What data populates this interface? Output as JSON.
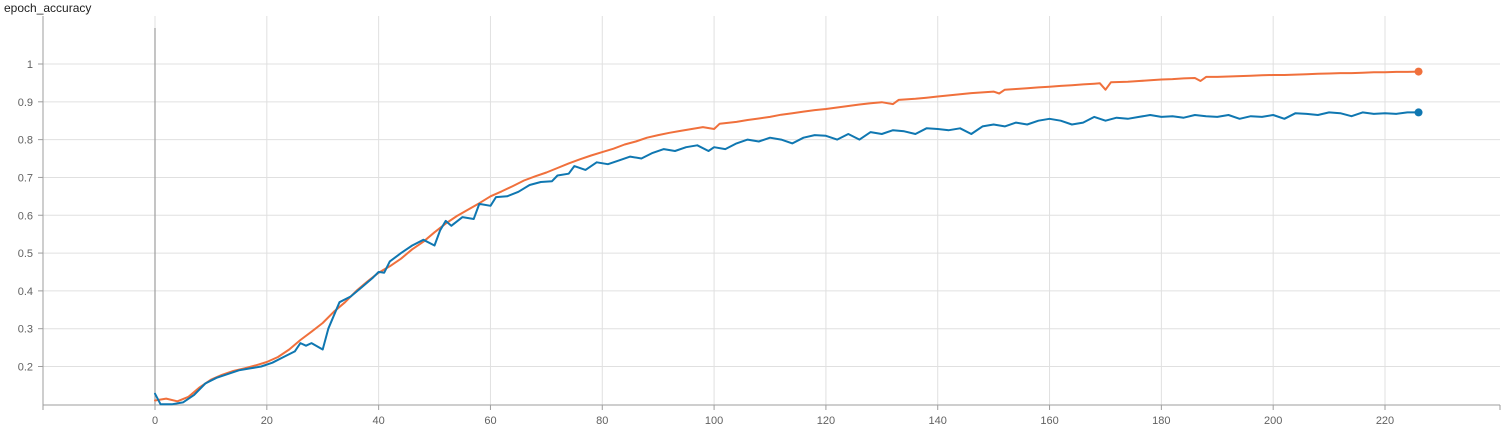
{
  "chart_title": "epoch_accuracy",
  "chart_data": {
    "type": "line",
    "title": "epoch_accuracy",
    "xlabel": "",
    "ylabel": "",
    "xlim": [
      -20,
      240
    ],
    "ylim": [
      0.1,
      1.08
    ],
    "x_ticks": [
      "0",
      "20",
      "40",
      "60",
      "80",
      "100",
      "120",
      "140",
      "160",
      "180",
      "200",
      "220"
    ],
    "y_ticks": [
      "0.2",
      "0.3",
      "0.4",
      "0.5",
      "0.6",
      "0.7",
      "0.8",
      "0.9",
      "1"
    ],
    "grid": true,
    "series": [
      {
        "color": "#f0703c",
        "points": [
          [
            0,
            0.11
          ],
          [
            2,
            0.115
          ],
          [
            4,
            0.108
          ],
          [
            6,
            0.12
          ],
          [
            8,
            0.145
          ],
          [
            10,
            0.165
          ],
          [
            12,
            0.178
          ],
          [
            14,
            0.188
          ],
          [
            16,
            0.195
          ],
          [
            18,
            0.203
          ],
          [
            20,
            0.212
          ],
          [
            22,
            0.225
          ],
          [
            24,
            0.245
          ],
          [
            26,
            0.27
          ],
          [
            28,
            0.292
          ],
          [
            30,
            0.315
          ],
          [
            32,
            0.345
          ],
          [
            34,
            0.37
          ],
          [
            36,
            0.4
          ],
          [
            38,
            0.425
          ],
          [
            40,
            0.448
          ],
          [
            42,
            0.465
          ],
          [
            44,
            0.485
          ],
          [
            46,
            0.51
          ],
          [
            48,
            0.53
          ],
          [
            50,
            0.555
          ],
          [
            52,
            0.578
          ],
          [
            54,
            0.598
          ],
          [
            56,
            0.615
          ],
          [
            58,
            0.632
          ],
          [
            60,
            0.65
          ],
          [
            62,
            0.663
          ],
          [
            64,
            0.677
          ],
          [
            66,
            0.692
          ],
          [
            68,
            0.703
          ],
          [
            70,
            0.713
          ],
          [
            72,
            0.725
          ],
          [
            74,
            0.737
          ],
          [
            76,
            0.748
          ],
          [
            78,
            0.758
          ],
          [
            80,
            0.767
          ],
          [
            82,
            0.776
          ],
          [
            84,
            0.787
          ],
          [
            86,
            0.795
          ],
          [
            88,
            0.805
          ],
          [
            90,
            0.812
          ],
          [
            92,
            0.818
          ],
          [
            94,
            0.823
          ],
          [
            96,
            0.828
          ],
          [
            98,
            0.833
          ],
          [
            100,
            0.828
          ],
          [
            101,
            0.842
          ],
          [
            104,
            0.847
          ],
          [
            106,
            0.852
          ],
          [
            108,
            0.856
          ],
          [
            110,
            0.86
          ],
          [
            112,
            0.866
          ],
          [
            114,
            0.87
          ],
          [
            116,
            0.874
          ],
          [
            118,
            0.878
          ],
          [
            120,
            0.881
          ],
          [
            122,
            0.885
          ],
          [
            124,
            0.889
          ],
          [
            126,
            0.893
          ],
          [
            128,
            0.896
          ],
          [
            130,
            0.899
          ],
          [
            132,
            0.894
          ],
          [
            133,
            0.905
          ],
          [
            136,
            0.908
          ],
          [
            138,
            0.911
          ],
          [
            140,
            0.914
          ],
          [
            142,
            0.917
          ],
          [
            144,
            0.92
          ],
          [
            146,
            0.923
          ],
          [
            148,
            0.925
          ],
          [
            150,
            0.927
          ],
          [
            151,
            0.922
          ],
          [
            152,
            0.932
          ],
          [
            154,
            0.934
          ],
          [
            156,
            0.936
          ],
          [
            158,
            0.938
          ],
          [
            160,
            0.94
          ],
          [
            162,
            0.942
          ],
          [
            164,
            0.944
          ],
          [
            166,
            0.946
          ],
          [
            168,
            0.948
          ],
          [
            169,
            0.949
          ],
          [
            170,
            0.932
          ],
          [
            171,
            0.952
          ],
          [
            174,
            0.953
          ],
          [
            176,
            0.955
          ],
          [
            178,
            0.957
          ],
          [
            180,
            0.959
          ],
          [
            182,
            0.96
          ],
          [
            184,
            0.962
          ],
          [
            186,
            0.963
          ],
          [
            187,
            0.955
          ],
          [
            188,
            0.966
          ],
          [
            190,
            0.966
          ],
          [
            192,
            0.967
          ],
          [
            194,
            0.968
          ],
          [
            196,
            0.969
          ],
          [
            198,
            0.97
          ],
          [
            200,
            0.971
          ],
          [
            202,
            0.971
          ],
          [
            204,
            0.972
          ],
          [
            206,
            0.973
          ],
          [
            208,
            0.974
          ],
          [
            210,
            0.975
          ],
          [
            212,
            0.976
          ],
          [
            214,
            0.976
          ],
          [
            216,
            0.977
          ],
          [
            218,
            0.978
          ],
          [
            220,
            0.978
          ],
          [
            222,
            0.979
          ],
          [
            224,
            0.979
          ],
          [
            226,
            0.98
          ]
        ]
      },
      {
        "color": "#0f77b1",
        "points": [
          [
            0,
            0.128
          ],
          [
            1,
            0.1
          ],
          [
            3,
            0.1
          ],
          [
            5,
            0.105
          ],
          [
            7,
            0.125
          ],
          [
            9,
            0.155
          ],
          [
            11,
            0.17
          ],
          [
            13,
            0.18
          ],
          [
            15,
            0.19
          ],
          [
            17,
            0.195
          ],
          [
            19,
            0.2
          ],
          [
            21,
            0.21
          ],
          [
            23,
            0.225
          ],
          [
            25,
            0.24
          ],
          [
            26,
            0.262
          ],
          [
            27,
            0.255
          ],
          [
            28,
            0.262
          ],
          [
            30,
            0.245
          ],
          [
            31,
            0.3
          ],
          [
            33,
            0.37
          ],
          [
            35,
            0.385
          ],
          [
            37,
            0.41
          ],
          [
            39,
            0.435
          ],
          [
            40,
            0.45
          ],
          [
            41,
            0.448
          ],
          [
            42,
            0.478
          ],
          [
            44,
            0.5
          ],
          [
            46,
            0.52
          ],
          [
            48,
            0.535
          ],
          [
            50,
            0.52
          ],
          [
            51,
            0.56
          ],
          [
            52,
            0.585
          ],
          [
            53,
            0.572
          ],
          [
            55,
            0.595
          ],
          [
            57,
            0.59
          ],
          [
            58,
            0.63
          ],
          [
            60,
            0.625
          ],
          [
            61,
            0.648
          ],
          [
            63,
            0.65
          ],
          [
            65,
            0.662
          ],
          [
            67,
            0.68
          ],
          [
            69,
            0.688
          ],
          [
            71,
            0.69
          ],
          [
            72,
            0.705
          ],
          [
            74,
            0.71
          ],
          [
            75,
            0.73
          ],
          [
            77,
            0.72
          ],
          [
            79,
            0.74
          ],
          [
            81,
            0.735
          ],
          [
            83,
            0.745
          ],
          [
            85,
            0.755
          ],
          [
            87,
            0.75
          ],
          [
            89,
            0.765
          ],
          [
            91,
            0.775
          ],
          [
            93,
            0.77
          ],
          [
            95,
            0.78
          ],
          [
            97,
            0.785
          ],
          [
            99,
            0.77
          ],
          [
            100,
            0.78
          ],
          [
            102,
            0.775
          ],
          [
            104,
            0.79
          ],
          [
            106,
            0.8
          ],
          [
            108,
            0.795
          ],
          [
            110,
            0.805
          ],
          [
            112,
            0.8
          ],
          [
            114,
            0.79
          ],
          [
            116,
            0.805
          ],
          [
            118,
            0.812
          ],
          [
            120,
            0.81
          ],
          [
            122,
            0.8
          ],
          [
            124,
            0.815
          ],
          [
            126,
            0.8
          ],
          [
            128,
            0.82
          ],
          [
            130,
            0.815
          ],
          [
            132,
            0.825
          ],
          [
            134,
            0.822
          ],
          [
            136,
            0.815
          ],
          [
            138,
            0.83
          ],
          [
            140,
            0.828
          ],
          [
            142,
            0.825
          ],
          [
            144,
            0.83
          ],
          [
            146,
            0.815
          ],
          [
            148,
            0.835
          ],
          [
            150,
            0.84
          ],
          [
            152,
            0.835
          ],
          [
            154,
            0.845
          ],
          [
            156,
            0.84
          ],
          [
            158,
            0.85
          ],
          [
            160,
            0.855
          ],
          [
            162,
            0.85
          ],
          [
            164,
            0.84
          ],
          [
            166,
            0.845
          ],
          [
            168,
            0.86
          ],
          [
            170,
            0.85
          ],
          [
            172,
            0.858
          ],
          [
            174,
            0.855
          ],
          [
            176,
            0.86
          ],
          [
            178,
            0.865
          ],
          [
            180,
            0.86
          ],
          [
            182,
            0.862
          ],
          [
            184,
            0.858
          ],
          [
            186,
            0.865
          ],
          [
            188,
            0.862
          ],
          [
            190,
            0.86
          ],
          [
            192,
            0.865
          ],
          [
            194,
            0.855
          ],
          [
            196,
            0.862
          ],
          [
            198,
            0.86
          ],
          [
            200,
            0.865
          ],
          [
            202,
            0.855
          ],
          [
            204,
            0.87
          ],
          [
            206,
            0.868
          ],
          [
            208,
            0.865
          ],
          [
            210,
            0.872
          ],
          [
            212,
            0.87
          ],
          [
            214,
            0.862
          ],
          [
            216,
            0.872
          ],
          [
            218,
            0.868
          ],
          [
            220,
            0.87
          ],
          [
            222,
            0.868
          ],
          [
            224,
            0.872
          ],
          [
            226,
            0.872
          ]
        ]
      }
    ]
  }
}
